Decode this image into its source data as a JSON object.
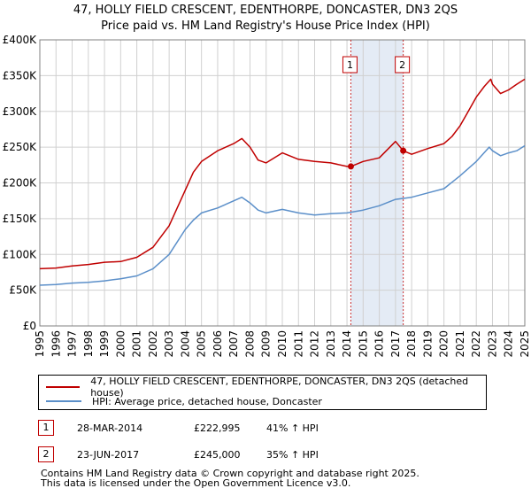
{
  "chart_data": {
    "type": "line",
    "title": "47, HOLLY FIELD CRESCENT, EDENTHORPE, DONCASTER, DN3 2QS",
    "subtitle": "Price paid vs. HM Land Registry's House Price Index (HPI)",
    "xlim": [
      1995,
      2025
    ],
    "ylim": [
      0,
      400000
    ],
    "x_ticks": [
      "1995",
      "1996",
      "1997",
      "1998",
      "1999",
      "2000",
      "2001",
      "2002",
      "2003",
      "2004",
      "2005",
      "2006",
      "2007",
      "2008",
      "2009",
      "2010",
      "2011",
      "2012",
      "2013",
      "2014",
      "2015",
      "2016",
      "2017",
      "2018",
      "2019",
      "2020",
      "2021",
      "2022",
      "2023",
      "2024",
      "2025"
    ],
    "y_ticks": [
      {
        "value": 0,
        "label": "£0"
      },
      {
        "value": 50000,
        "label": "£50K"
      },
      {
        "value": 100000,
        "label": "£100K"
      },
      {
        "value": 150000,
        "label": "£150K"
      },
      {
        "value": 200000,
        "label": "£200K"
      },
      {
        "value": 250000,
        "label": "£250K"
      },
      {
        "value": 300000,
        "label": "£300K"
      },
      {
        "value": 350000,
        "label": "£350K"
      },
      {
        "value": 400000,
        "label": "£400K"
      }
    ],
    "grid": true,
    "series": [
      {
        "name": "47, HOLLY FIELD CRESCENT, EDENTHORPE, DONCASTER, DN3 2QS (detached house)",
        "color": "#c00000",
        "points": [
          [
            1995,
            80000
          ],
          [
            1996,
            81000
          ],
          [
            1997,
            84000
          ],
          [
            1998,
            86000
          ],
          [
            1999,
            89000
          ],
          [
            2000,
            90000
          ],
          [
            2001,
            96000
          ],
          [
            2002,
            110000
          ],
          [
            2003,
            140000
          ],
          [
            2004,
            190000
          ],
          [
            2004.5,
            215000
          ],
          [
            2005,
            230000
          ],
          [
            2006,
            245000
          ],
          [
            2007,
            255000
          ],
          [
            2007.5,
            262000
          ],
          [
            2008,
            250000
          ],
          [
            2008.5,
            232000
          ],
          [
            2009,
            228000
          ],
          [
            2010,
            242000
          ],
          [
            2011,
            233000
          ],
          [
            2012,
            230000
          ],
          [
            2013,
            228000
          ],
          [
            2014,
            223000
          ],
          [
            2014.24,
            222995
          ],
          [
            2015,
            230000
          ],
          [
            2016,
            235000
          ],
          [
            2017,
            258000
          ],
          [
            2017.48,
            245000
          ],
          [
            2018,
            240000
          ],
          [
            2019,
            248000
          ],
          [
            2020,
            255000
          ],
          [
            2020.5,
            265000
          ],
          [
            2021,
            280000
          ],
          [
            2021.5,
            300000
          ],
          [
            2022,
            320000
          ],
          [
            2022.5,
            335000
          ],
          [
            2022.9,
            345000
          ],
          [
            2023,
            338000
          ],
          [
            2023.5,
            325000
          ],
          [
            2024,
            330000
          ],
          [
            2024.5,
            338000
          ],
          [
            2025,
            345000
          ]
        ]
      },
      {
        "name": "HPI: Average price, detached house, Doncaster",
        "color": "#5b8fc9",
        "points": [
          [
            1995,
            57000
          ],
          [
            1996,
            58000
          ],
          [
            1997,
            60000
          ],
          [
            1998,
            61000
          ],
          [
            1999,
            63000
          ],
          [
            2000,
            66000
          ],
          [
            2001,
            70000
          ],
          [
            2002,
            80000
          ],
          [
            2003,
            100000
          ],
          [
            2004,
            135000
          ],
          [
            2004.5,
            148000
          ],
          [
            2005,
            158000
          ],
          [
            2006,
            165000
          ],
          [
            2007,
            175000
          ],
          [
            2007.5,
            180000
          ],
          [
            2008,
            172000
          ],
          [
            2008.5,
            162000
          ],
          [
            2009,
            158000
          ],
          [
            2010,
            163000
          ],
          [
            2011,
            158000
          ],
          [
            2012,
            155000
          ],
          [
            2013,
            157000
          ],
          [
            2014,
            158000
          ],
          [
            2015,
            162000
          ],
          [
            2016,
            168000
          ],
          [
            2017,
            177000
          ],
          [
            2018,
            180000
          ],
          [
            2019,
            186000
          ],
          [
            2020,
            192000
          ],
          [
            2021,
            210000
          ],
          [
            2022,
            230000
          ],
          [
            2022.8,
            250000
          ],
          [
            2023,
            245000
          ],
          [
            2023.5,
            238000
          ],
          [
            2024,
            242000
          ],
          [
            2024.5,
            245000
          ],
          [
            2025,
            252000
          ]
        ]
      }
    ],
    "markers": [
      {
        "label": "1",
        "x": 2014.24,
        "y": 222995
      },
      {
        "label": "2",
        "x": 2017.48,
        "y": 245000
      }
    ],
    "highlight_range": [
      2014.24,
      2017.48
    ]
  },
  "legend": {
    "property_label": "47, HOLLY FIELD CRESCENT, EDENTHORPE, DONCASTER, DN3 2QS (detached house)",
    "hpi_label": "HPI: Average price, detached house, Doncaster",
    "property_color": "#c00000",
    "hpi_color": "#5b8fc9"
  },
  "transactions": [
    {
      "num": "1",
      "date": "28-MAR-2014",
      "price": "£222,995",
      "hpi": "41% ↑ HPI"
    },
    {
      "num": "2",
      "date": "23-JUN-2017",
      "price": "£245,000",
      "hpi": "35% ↑ HPI"
    }
  ],
  "footer": {
    "line1": "Contains HM Land Registry data © Crown copyright and database right 2025.",
    "line2": "This data is licensed under the Open Government Licence v3.0."
  }
}
